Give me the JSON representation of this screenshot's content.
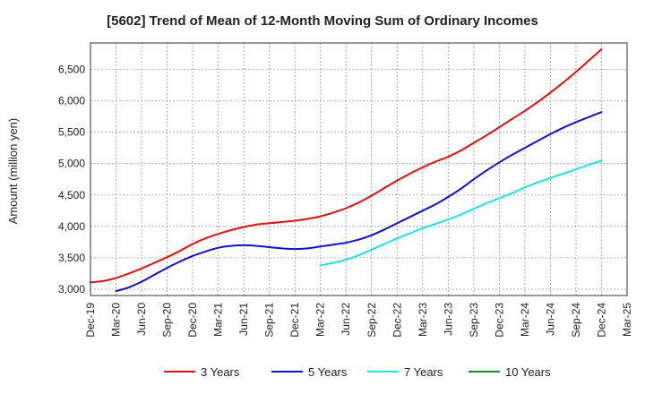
{
  "chart_data": {
    "type": "line",
    "title": "[5602]  Trend of Mean of 12-Month Moving Sum of Ordinary Incomes",
    "xlabel": "",
    "ylabel": "Amount (million yen)",
    "ylim": [
      2900,
      6920
    ],
    "yticks": [
      3000,
      3500,
      4000,
      4500,
      5000,
      5500,
      6000,
      6500
    ],
    "ytick_labels": [
      "3,000",
      "3,500",
      "4,000",
      "4,500",
      "5,000",
      "5,500",
      "6,000",
      "6,500"
    ],
    "x_tick_labels": [
      "Dec-19",
      "Mar-20",
      "Jun-20",
      "Sep-20",
      "Dec-20",
      "Mar-21",
      "Jun-21",
      "Sep-21",
      "Dec-21",
      "Mar-22",
      "Jun-22",
      "Sep-22",
      "Dec-22",
      "Mar-23",
      "Jun-23",
      "Sep-23",
      "Dec-23",
      "Mar-24",
      "Jun-24",
      "Sep-24",
      "Dec-24",
      "Mar-25"
    ],
    "x_units": "quarter index (0 = Dec-19)",
    "series": [
      {
        "name": "3 Years",
        "color": "#dd1111",
        "x": [
          0,
          0.5,
          1,
          1.5,
          2,
          2.5,
          3,
          3.5,
          4,
          4.5,
          5,
          5.5,
          6,
          6.5,
          7,
          7.5,
          8,
          8.5,
          9,
          9.5,
          10,
          10.5,
          11,
          11.5,
          12,
          12.5,
          13,
          13.5,
          14,
          14.5,
          15,
          15.5,
          16,
          16.5,
          17,
          17.5,
          18,
          18.5,
          19,
          19.5,
          20
        ],
        "values": [
          3110,
          3130,
          3180,
          3250,
          3330,
          3420,
          3510,
          3610,
          3720,
          3810,
          3880,
          3940,
          3990,
          4030,
          4050,
          4070,
          4090,
          4120,
          4160,
          4220,
          4290,
          4380,
          4490,
          4610,
          4730,
          4840,
          4940,
          5030,
          5110,
          5210,
          5330,
          5450,
          5580,
          5710,
          5840,
          5980,
          6130,
          6290,
          6460,
          6640,
          6820
        ]
      },
      {
        "name": "5 Years",
        "color": "#1111cc",
        "x": [
          1,
          1.5,
          2,
          2.5,
          3,
          3.5,
          4,
          4.5,
          5,
          5.5,
          6,
          6.5,
          7,
          7.5,
          8,
          8.5,
          9,
          9.5,
          10,
          10.5,
          11,
          11.5,
          12,
          12.5,
          13,
          13.5,
          14,
          14.5,
          15,
          15.5,
          16,
          16.5,
          17,
          17.5,
          18,
          18.5,
          19,
          19.5,
          20
        ],
        "values": [
          2970,
          3030,
          3120,
          3230,
          3340,
          3440,
          3530,
          3600,
          3660,
          3690,
          3700,
          3690,
          3670,
          3650,
          3640,
          3650,
          3680,
          3710,
          3740,
          3790,
          3860,
          3950,
          4050,
          4150,
          4250,
          4350,
          4470,
          4600,
          4750,
          4890,
          5020,
          5140,
          5250,
          5360,
          5470,
          5570,
          5660,
          5740,
          5820
        ]
      },
      {
        "name": "7 Years",
        "color": "#22e0e8",
        "x": [
          9,
          9.5,
          10,
          10.5,
          11,
          11.5,
          12,
          12.5,
          13,
          13.5,
          14,
          14.5,
          15,
          15.5,
          16,
          16.5,
          17,
          17.5,
          18,
          18.5,
          19,
          19.5,
          20
        ],
        "values": [
          3380,
          3420,
          3470,
          3540,
          3630,
          3720,
          3810,
          3890,
          3970,
          4040,
          4110,
          4190,
          4280,
          4370,
          4450,
          4530,
          4620,
          4700,
          4770,
          4840,
          4910,
          4980,
          5050
        ]
      },
      {
        "name": "10 Years",
        "color": "#228822",
        "x": [],
        "values": []
      }
    ],
    "legend": [
      "3 Years",
      "5 Years",
      "7 Years",
      "10 Years"
    ],
    "legend_position": "bottom",
    "grid": true
  }
}
